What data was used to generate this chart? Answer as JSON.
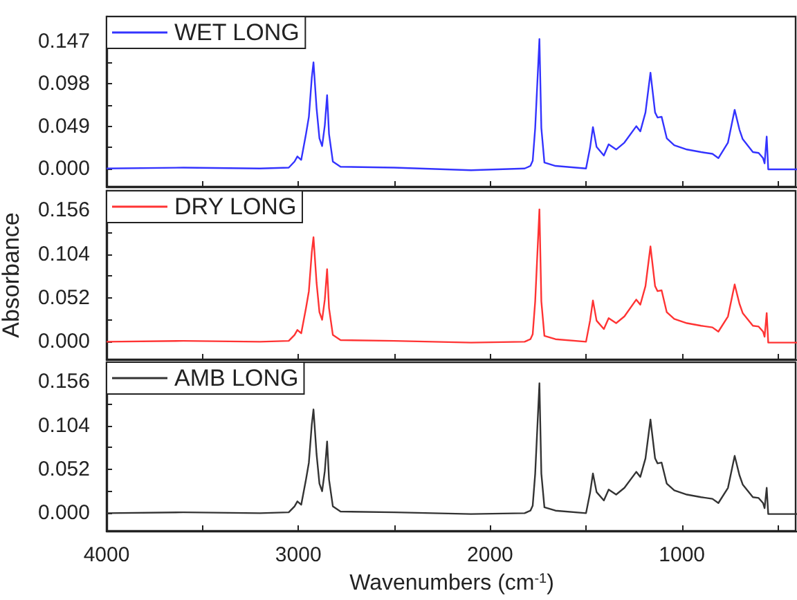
{
  "chart_data": [
    {
      "type": "line",
      "legend": "top left",
      "marker": "none",
      "grid": false,
      "tick_labels": "y",
      "xlim": [
        4000,
        400
      ],
      "xticks": [
        {
          "value": 4000,
          "label": null
        },
        {
          "value": 3500,
          "label": null
        },
        {
          "value": 3000,
          "label": null
        },
        {
          "value": 2500,
          "label": null
        },
        {
          "value": 2000,
          "label": null
        },
        {
          "value": 1500,
          "label": null
        },
        {
          "value": 1000,
          "label": null
        },
        {
          "value": 500,
          "label": null
        }
      ],
      "ylim": [
        -0.021,
        0.176
      ],
      "yticks": [
        {
          "value": 0,
          "label": "0.000"
        },
        {
          "value": 0.0245,
          "label": null
        },
        0.049,
        {
          "value": 0.0735,
          "label": null
        },
        0.098,
        {
          "value": 0.1225,
          "label": null
        },
        0.147
      ],
      "x": [
        4000,
        3600,
        3200,
        3050,
        3020,
        3005,
        2985,
        2960,
        2945,
        2930,
        2921,
        2905,
        2890,
        2876,
        2862,
        2850,
        2840,
        2820,
        2780,
        2500,
        2100,
        1820,
        1790,
        1778,
        1765,
        1743,
        1733,
        1717,
        1659,
        1500,
        1479,
        1464,
        1445,
        1407,
        1382,
        1343,
        1300,
        1238,
        1217,
        1190,
        1164,
        1140,
        1127,
        1106,
        1079,
        1040,
        974,
        900,
        841,
        810,
        760,
        725,
        700,
        683,
        630,
        600,
        577,
        569,
        558,
        550,
        400
      ],
      "series": [
        {
          "name": "WET LONG",
          "color": "#3333ff",
          "values": [
            0.0,
            0.001,
            0.0,
            0.001,
            0.008,
            0.014,
            0.01,
            0.04,
            0.06,
            0.105,
            0.123,
            0.07,
            0.035,
            0.026,
            0.05,
            0.085,
            0.04,
            0.008,
            0.002,
            0.001,
            -0.002,
            0.0,
            0.003,
            0.009,
            0.047,
            0.15,
            0.047,
            0.007,
            0.003,
            0.0,
            0.024,
            0.048,
            0.025,
            0.015,
            0.028,
            0.022,
            0.03,
            0.049,
            0.043,
            0.065,
            0.111,
            0.065,
            0.059,
            0.06,
            0.035,
            0.027,
            0.022,
            0.019,
            0.017,
            0.012,
            0.03,
            0.068,
            0.045,
            0.034,
            0.019,
            0.018,
            0.012,
            0.006,
            0.037,
            -0.001,
            -0.001
          ]
        }
      ]
    },
    {
      "type": "line",
      "legend": "top left",
      "marker": "none",
      "grid": false,
      "tick_labels": "y",
      "ylabel": "Absorbance",
      "xlim": [
        4000,
        400
      ],
      "xticks": [
        {
          "value": 4000,
          "label": null
        },
        {
          "value": 3500,
          "label": null
        },
        {
          "value": 3000,
          "label": null
        },
        {
          "value": 2500,
          "label": null
        },
        {
          "value": 2000,
          "label": null
        },
        {
          "value": 1500,
          "label": null
        },
        {
          "value": 1000,
          "label": null
        },
        {
          "value": 500,
          "label": null
        }
      ],
      "ylim": [
        -0.021,
        0.179
      ],
      "yticks": [
        {
          "value": 0,
          "label": "0.000"
        },
        {
          "value": 0.026,
          "label": null
        },
        0.052,
        {
          "value": 0.078,
          "label": null
        },
        0.104,
        {
          "value": 0.13,
          "label": null
        },
        0.156
      ],
      "x": [
        4000,
        3600,
        3200,
        3050,
        3020,
        3005,
        2985,
        2960,
        2945,
        2930,
        2921,
        2905,
        2890,
        2876,
        2862,
        2850,
        2840,
        2820,
        2780,
        2500,
        2100,
        1820,
        1790,
        1778,
        1765,
        1743,
        1733,
        1717,
        1659,
        1500,
        1479,
        1464,
        1445,
        1407,
        1382,
        1343,
        1300,
        1238,
        1217,
        1190,
        1164,
        1140,
        1127,
        1106,
        1079,
        1040,
        974,
        900,
        841,
        810,
        760,
        725,
        700,
        683,
        630,
        600,
        577,
        569,
        558,
        550,
        400
      ],
      "series": [
        {
          "name": "DRY LONG",
          "color": "#ff3333",
          "values": [
            0.0,
            0.001,
            0.0,
            0.001,
            0.008,
            0.014,
            0.01,
            0.04,
            0.06,
            0.106,
            0.124,
            0.07,
            0.035,
            0.026,
            0.05,
            0.086,
            0.04,
            0.008,
            0.002,
            0.001,
            -0.001,
            0.0,
            0.003,
            0.009,
            0.048,
            0.157,
            0.048,
            0.007,
            0.003,
            0.0,
            0.025,
            0.049,
            0.025,
            0.015,
            0.028,
            0.022,
            0.03,
            0.05,
            0.044,
            0.066,
            0.113,
            0.066,
            0.06,
            0.061,
            0.035,
            0.027,
            0.022,
            0.019,
            0.017,
            0.012,
            0.03,
            0.068,
            0.045,
            0.034,
            0.019,
            0.018,
            0.012,
            0.006,
            0.034,
            -0.001,
            -0.001
          ]
        }
      ]
    },
    {
      "type": "line",
      "legend": "top left",
      "marker": "none",
      "grid": false,
      "xlabel": "Wavenumbers (cm$^{-1}$)",
      "xlim": [
        4000,
        400
      ],
      "xticks": [
        4000,
        {
          "value": 3500,
          "label": null
        },
        3000,
        {
          "value": 2500,
          "label": null
        },
        2000,
        {
          "value": 1500,
          "label": null
        },
        1000,
        {
          "value": 500,
          "label": null
        }
      ],
      "ylim": [
        -0.021,
        0.179
      ],
      "yticks": [
        {
          "value": 0,
          "label": "0.000"
        },
        {
          "value": 0.026,
          "label": null
        },
        0.052,
        {
          "value": 0.078,
          "label": null
        },
        0.104,
        {
          "value": 0.13,
          "label": null
        },
        0.156
      ],
      "x": [
        4000,
        3600,
        3200,
        3050,
        3020,
        3005,
        2985,
        2960,
        2945,
        2930,
        2921,
        2905,
        2890,
        2876,
        2862,
        2850,
        2840,
        2820,
        2780,
        2500,
        2100,
        1820,
        1790,
        1778,
        1765,
        1743,
        1733,
        1717,
        1659,
        1500,
        1479,
        1464,
        1445,
        1407,
        1382,
        1343,
        1300,
        1238,
        1217,
        1190,
        1164,
        1140,
        1127,
        1106,
        1079,
        1040,
        974,
        900,
        841,
        810,
        760,
        725,
        700,
        683,
        630,
        600,
        577,
        569,
        558,
        550,
        400
      ],
      "series": [
        {
          "name": "AMB LONG",
          "color": "#333333",
          "values": [
            0.0,
            0.001,
            0.0,
            0.001,
            0.008,
            0.014,
            0.01,
            0.04,
            0.06,
            0.105,
            0.123,
            0.07,
            0.035,
            0.026,
            0.05,
            0.085,
            0.04,
            0.008,
            0.002,
            0.001,
            -0.001,
            0.0,
            0.003,
            0.009,
            0.047,
            0.154,
            0.047,
            0.007,
            0.003,
            0.0,
            0.024,
            0.047,
            0.025,
            0.015,
            0.028,
            0.022,
            0.03,
            0.049,
            0.043,
            0.065,
            0.111,
            0.065,
            0.059,
            0.06,
            0.035,
            0.027,
            0.022,
            0.019,
            0.017,
            0.012,
            0.03,
            0.068,
            0.045,
            0.034,
            0.019,
            0.018,
            0.012,
            0.006,
            0.03,
            -0.001,
            -0.001
          ]
        }
      ]
    }
  ]
}
